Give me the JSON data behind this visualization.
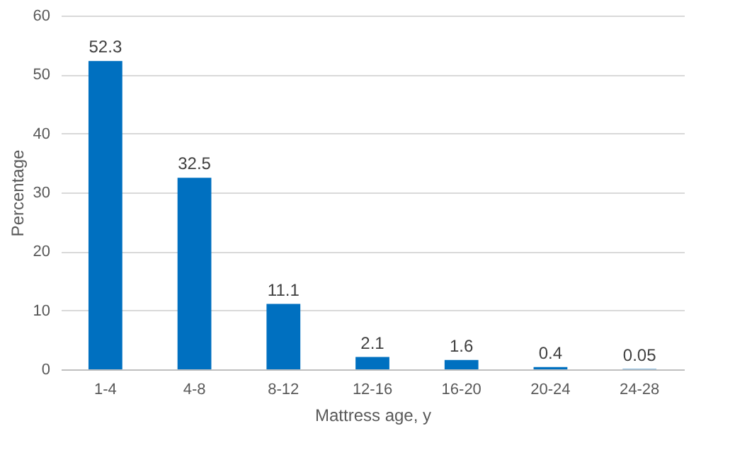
{
  "chart_data": {
    "type": "bar",
    "xlabel": "Mattress age, y",
    "ylabel": "Percentage",
    "categories": [
      "1-4",
      "4-8",
      "8-12",
      "12-16",
      "16-20",
      "20-24",
      "24-28"
    ],
    "values": [
      52.3,
      32.5,
      11.1,
      2.1,
      1.6,
      0.4,
      0.05
    ],
    "color": "#0070c0",
    "ylim": [
      0,
      60
    ],
    "yticks": [
      0,
      10,
      20,
      30,
      40,
      50,
      60
    ],
    "grid": "y",
    "data_labels": true
  }
}
